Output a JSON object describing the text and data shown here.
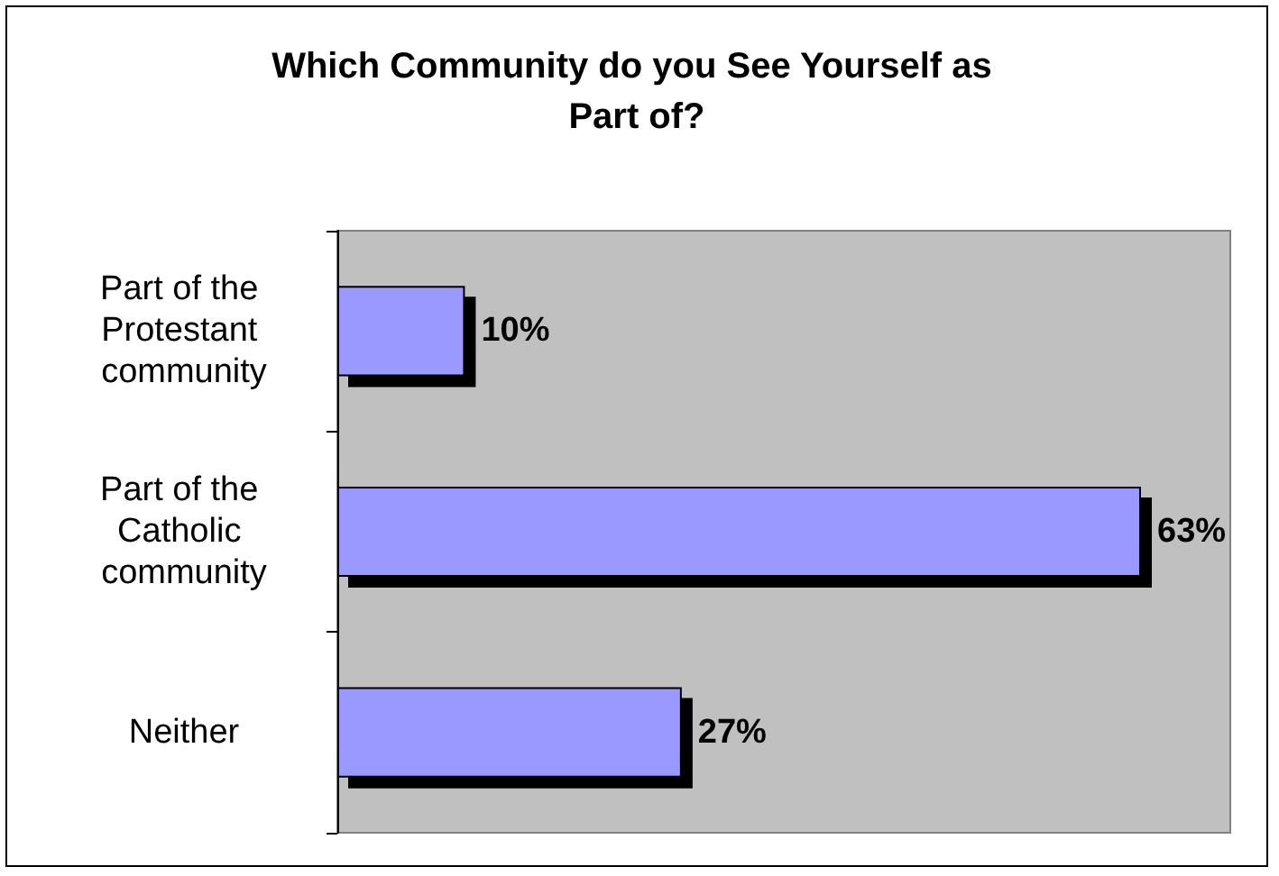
{
  "chart_data": {
    "type": "bar",
    "orientation": "horizontal",
    "title": "Which Community do you See Yourself as Part of?",
    "categories": [
      "Part of the Protestant community",
      "Part of the Catholic community",
      "Neither"
    ],
    "values": [
      10,
      63,
      27
    ],
    "value_labels": [
      "10%",
      "63%",
      "27%"
    ],
    "color": "#9999ff"
  }
}
